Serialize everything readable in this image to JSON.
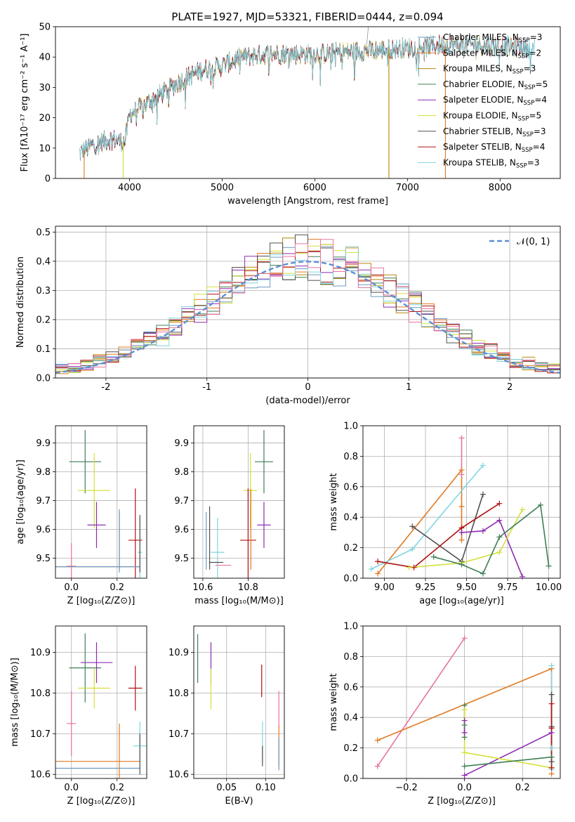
{
  "figure_title": "PLATE=1927, MJD=53321, FIBERID=0444, z=0.094",
  "model_colors": [
    "#6b9ac4",
    "#e07a22",
    "#b8860b",
    "#3f7f56",
    "#8e2bb0",
    "#d4e03a",
    "#505050",
    "#b01010",
    "#7fd6e0",
    "#e8749f"
  ],
  "chart_data": [
    {
      "id": "spectrum",
      "type": "line",
      "title": "PLATE=1927, MJD=53321, FIBERID=0444, z=0.094",
      "xlabel": "wavelength [Angstrom, rest frame]",
      "ylabel": "Flux [fλ10⁻¹⁷ erg cm⁻² s⁻¹ A⁻¹]",
      "xlim": [
        3200,
        8650
      ],
      "ylim": [
        0,
        50
      ],
      "xticks": [
        4000,
        5000,
        6000,
        7000,
        8000
      ],
      "yticks": [
        0,
        10,
        20,
        30,
        40,
        50
      ],
      "grid": false,
      "legend_position": "right",
      "continuum": {
        "x": [
          3450,
          3600,
          3800,
          3950,
          4000,
          4200,
          4400,
          4600,
          4800,
          5000,
          5200,
          5500,
          6000,
          6500,
          7000,
          7400,
          7800,
          8300
        ],
        "y": [
          8,
          11,
          13,
          12,
          21,
          25,
          29,
          33,
          36,
          37,
          40,
          41,
          41,
          42,
          43,
          44,
          44,
          43
        ]
      },
      "legend": [
        {
          "label": "Chabrier MILES, N",
          "sub": "SSP",
          "tail": "=3",
          "color_index": 0
        },
        {
          "label": "Salpeter MILES, N",
          "sub": "SSP",
          "tail": "=2",
          "color_index": 1
        },
        {
          "label": "Kroupa MILES, N",
          "sub": "SSP",
          "tail": "=3",
          "color_index": 2
        },
        {
          "label": "Chabrier ELODIE, N",
          "sub": "SSP",
          "tail": "=5",
          "color_index": 3
        },
        {
          "label": "Salpeter ELODIE, N",
          "sub": "SSP",
          "tail": "=4",
          "color_index": 4
        },
        {
          "label": "Kroupa ELODIE, N",
          "sub": "SSP",
          "tail": "=5",
          "color_index": 5
        },
        {
          "label": "Chabrier STELIB, N",
          "sub": "SSP",
          "tail": "=3",
          "color_index": 6
        },
        {
          "label": "Salpeter STELIB, N",
          "sub": "SSP",
          "tail": "=4",
          "color_index": 7
        },
        {
          "label": "Kroupa STELIB, N",
          "sub": "SSP",
          "tail": "=3",
          "color_index": 8
        }
      ]
    },
    {
      "id": "residuals",
      "type": "step",
      "xlabel": "(data-model)/error",
      "ylabel": "Normed distribution",
      "xlim": [
        -2.5,
        2.5
      ],
      "ylim": [
        0,
        0.52
      ],
      "xticks": [
        -2,
        -1,
        0,
        1,
        2
      ],
      "yticks": [
        0.0,
        0.1,
        0.2,
        0.3,
        0.4,
        0.5
      ],
      "grid": true,
      "legend_position": "top-right",
      "gaussian_label": "𝒩(0, 1)",
      "gaussian_color": "#5b8fd6"
    },
    {
      "id": "age_vs_Z",
      "type": "errorbar",
      "xlabel": "Z [log₁₀(Z/Z⊙)]",
      "ylabel": "age [log₁₀(age/yr)]",
      "xlim": [
        -0.07,
        0.33
      ],
      "ylim": [
        9.43,
        9.96
      ],
      "xticks": [
        0.0,
        0.2
      ],
      "yticks": [
        9.5,
        9.6,
        9.7,
        9.8,
        9.9
      ],
      "grid": true,
      "points": [
        {
          "x": 0.06,
          "xerr": 0.07,
          "y": 9.835,
          "yerr": 0.11,
          "color_index": 3
        },
        {
          "x": 0.1,
          "xerr": 0.07,
          "y": 9.735,
          "yerr": 0.13,
          "color_index": 5
        },
        {
          "x": 0.11,
          "xerr": 0.04,
          "y": 9.615,
          "yerr": 0.08,
          "color_index": 4
        },
        {
          "x": 0.28,
          "xerr": 0.03,
          "y": 9.562,
          "yerr": 0.18,
          "color_index": 7
        },
        {
          "x": 0.3,
          "xerr": 0.01,
          "y": 9.52,
          "yerr": 0.12,
          "color_index": 8
        },
        {
          "x": 0.0,
          "xerr": 0.02,
          "y": 9.472,
          "yerr": 0.08,
          "color_index": 9
        },
        {
          "x": 0.1,
          "xerr": 0.2,
          "y": 9.47,
          "yerr": 0.0,
          "color_index": 1
        },
        {
          "x": 0.1,
          "xerr": 0.2,
          "y": 9.47,
          "yerr": 0.0,
          "color_index": 0
        },
        {
          "x": 0.21,
          "xerr": 0.0,
          "y": 9.56,
          "yerr": 0.1,
          "color_index": 1
        },
        {
          "x": 0.21,
          "xerr": 0.0,
          "y": 9.56,
          "yerr": 0.11,
          "color_index": 0
        },
        {
          "x": 0.3,
          "xerr": 0.0,
          "y": 9.55,
          "yerr": 0.1,
          "color_index": 6
        }
      ]
    },
    {
      "id": "age_vs_mass",
      "type": "errorbar",
      "xlabel": "mass [log₁₀(M/M⊙)]",
      "xlim": [
        10.56,
        10.96
      ],
      "ylim": [
        9.43,
        9.96
      ],
      "xticks": [
        10.6,
        10.8
      ],
      "yticks": [
        9.5,
        9.6,
        9.7,
        9.8,
        9.9
      ],
      "grid": true,
      "points": [
        {
          "x": 10.87,
          "xerr": 0.04,
          "y": 9.835,
          "yerr": 0.11,
          "color_index": 3
        },
        {
          "x": 10.81,
          "xerr": 0.03,
          "y": 9.735,
          "yerr": 0.13,
          "color_index": 5
        },
        {
          "x": 10.87,
          "xerr": 0.03,
          "y": 9.615,
          "yerr": 0.08,
          "color_index": 4
        },
        {
          "x": 10.8,
          "xerr": 0.035,
          "y": 9.562,
          "yerr": 0.18,
          "color_index": 7
        },
        {
          "x": 10.665,
          "xerr": 0.03,
          "y": 9.52,
          "yerr": 0.12,
          "color_index": 8
        },
        {
          "x": 10.69,
          "xerr": 0.035,
          "y": 9.475,
          "yerr": 0.0,
          "color_index": 9
        },
        {
          "x": 10.63,
          "xerr": 0.0,
          "y": 9.57,
          "yerr": 0.11,
          "color_index": 6
        },
        {
          "x": 10.615,
          "xerr": 0.0,
          "y": 9.56,
          "yerr": 0.1,
          "color_index": 0
        },
        {
          "x": 10.66,
          "xerr": 0.03,
          "y": 9.485,
          "yerr": 0.0,
          "color_index": 6
        },
        {
          "x": 10.812,
          "xerr": 0.0,
          "y": 9.6,
          "yerr": 0.14,
          "color_index": 1
        }
      ]
    },
    {
      "id": "massweight_vs_age",
      "type": "line",
      "xlabel": "age [log₁₀(age/yr)]",
      "ylabel": "mass weight",
      "xlim": [
        8.87,
        10.07
      ],
      "ylim": [
        0,
        1.0
      ],
      "xticks": [
        9.0,
        9.25,
        9.5,
        9.75,
        10.0
      ],
      "yticks": [
        0.0,
        0.2,
        0.4,
        0.6,
        0.8,
        1.0
      ],
      "grid": true,
      "series": [
        {
          "color_index": 9,
          "x": [
            9.47,
            9.47
          ],
          "y": [
            0.92,
            0.68
          ]
        },
        {
          "color_index": 1,
          "x": [
            8.96,
            9.47,
            9.47,
            9.47
          ],
          "y": [
            0.03,
            0.71,
            0.47,
            0.25
          ]
        },
        {
          "color_index": 8,
          "x": [
            8.92,
            9.17,
            9.6
          ],
          "y": [
            0.06,
            0.19,
            0.74
          ]
        },
        {
          "color_index": 6,
          "x": [
            9.17,
            9.47,
            9.6
          ],
          "y": [
            0.34,
            0.11,
            0.55
          ]
        },
        {
          "color_index": 7,
          "x": [
            8.96,
            9.18,
            9.47,
            9.7
          ],
          "y": [
            0.11,
            0.07,
            0.33,
            0.49
          ]
        },
        {
          "color_index": 4,
          "x": [
            9.47,
            9.6,
            9.7,
            9.84
          ],
          "y": [
            0.3,
            0.31,
            0.38,
            0.01
          ]
        },
        {
          "color_index": 5,
          "x": [
            9.15,
            9.47,
            9.7,
            9.84
          ],
          "y": [
            0.07,
            0.1,
            0.17,
            0.45
          ]
        },
        {
          "color_index": 3,
          "x": [
            9.3,
            9.47,
            9.6,
            9.7,
            9.95,
            10.0
          ],
          "y": [
            0.14,
            0.09,
            0.03,
            0.27,
            0.48,
            0.08
          ]
        }
      ]
    },
    {
      "id": "mass_vs_Z",
      "type": "errorbar",
      "xlabel": "Z [log₁₀(Z/Z⊙)]",
      "ylabel": "mass [log₁₀(M/M⊙)]",
      "xlim": [
        -0.07,
        0.33
      ],
      "ylim": [
        10.59,
        10.965
      ],
      "xticks": [
        0.0,
        0.2
      ],
      "yticks": [
        10.6,
        10.7,
        10.8,
        10.9
      ],
      "grid": true,
      "points": [
        {
          "x": 0.06,
          "xerr": 0.07,
          "y": 10.862,
          "yerr": 0.085,
          "color_index": 3
        },
        {
          "x": 0.11,
          "xerr": 0.07,
          "y": 10.875,
          "yerr": 0.05,
          "color_index": 4
        },
        {
          "x": 0.1,
          "xerr": 0.07,
          "y": 10.812,
          "yerr": 0.05,
          "color_index": 5
        },
        {
          "x": 0.28,
          "xerr": 0.03,
          "y": 10.812,
          "yerr": 0.055,
          "color_index": 7
        },
        {
          "x": 0.0,
          "xerr": 0.02,
          "y": 10.725,
          "yerr": 0.08,
          "color_index": 9
        },
        {
          "x": 0.3,
          "xerr": 0.03,
          "y": 10.67,
          "yerr": 0.06,
          "color_index": 8
        },
        {
          "x": 0.11,
          "xerr": 0.19,
          "y": 10.632,
          "yerr": 0.0,
          "color_index": 1
        },
        {
          "x": 0.11,
          "xerr": 0.19,
          "y": 10.615,
          "yerr": 0.0,
          "color_index": 0
        },
        {
          "x": 0.21,
          "xerr": 0.0,
          "y": 10.655,
          "yerr": 0.07,
          "color_index": 1
        },
        {
          "x": 0.3,
          "xerr": 0.0,
          "y": 10.65,
          "yerr": 0.05,
          "color_index": 6
        }
      ]
    },
    {
      "id": "mass_vs_ebv",
      "type": "errorbar",
      "xlabel": "E(B-V)",
      "xlim": [
        0.008,
        0.124
      ],
      "ylim": [
        10.59,
        10.965
      ],
      "xticks": [
        0.05,
        0.1
      ],
      "yticks": [
        10.6,
        10.7,
        10.8,
        10.9
      ],
      "grid": true,
      "points": [
        {
          "x": 0.013,
          "xerr": 0.0,
          "y": 10.885,
          "yerr": 0.06,
          "color_index": 3
        },
        {
          "x": 0.03,
          "xerr": 0.0,
          "y": 10.875,
          "yerr": 0.05,
          "color_index": 4
        },
        {
          "x": 0.03,
          "xerr": 0.0,
          "y": 10.81,
          "yerr": 0.05,
          "color_index": 5
        },
        {
          "x": 0.095,
          "xerr": 0.0,
          "y": 10.83,
          "yerr": 0.04,
          "color_index": 7
        },
        {
          "x": 0.096,
          "xerr": 0.0,
          "y": 10.68,
          "yerr": 0.05,
          "color_index": 8
        },
        {
          "x": 0.096,
          "xerr": 0.0,
          "y": 10.645,
          "yerr": 0.025,
          "color_index": 6
        },
        {
          "x": 0.117,
          "xerr": 0.0,
          "y": 10.76,
          "yerr": 0.045,
          "color_index": 9
        },
        {
          "x": 0.117,
          "xerr": 0.0,
          "y": 10.67,
          "yerr": 0.05,
          "color_index": 1
        },
        {
          "x": 0.117,
          "xerr": 0.0,
          "y": 10.65,
          "yerr": 0.04,
          "color_index": 0
        }
      ]
    },
    {
      "id": "massweight_vs_Z",
      "type": "line",
      "xlabel": "Z [log₁₀(Z/Z⊙)]",
      "ylabel": "mass weight",
      "xlim": [
        -0.35,
        0.33
      ],
      "ylim": [
        0,
        1.0
      ],
      "xticks": [
        -0.2,
        0.0,
        0.2
      ],
      "yticks": [
        0.0,
        0.2,
        0.4,
        0.6,
        0.8,
        1.0
      ],
      "grid": true,
      "series": [
        {
          "color_index": 9,
          "x": [
            -0.3,
            0.0
          ],
          "y": [
            0.08,
            0.92
          ]
        },
        {
          "color_index": 1,
          "x": [
            -0.3,
            0.3,
            0.3
          ],
          "y": [
            0.25,
            0.72,
            0.03
          ]
        },
        {
          "color_index": 4,
          "x": [
            0.0,
            0.3
          ],
          "y": [
            0.02,
            0.3
          ]
        },
        {
          "color_index": 5,
          "x": [
            0.0,
            0.3
          ],
          "y": [
            0.17,
            0.07
          ]
        },
        {
          "color_index": 3,
          "x": [
            0.0,
            0.3
          ],
          "y": [
            0.08,
            0.14
          ]
        },
        {
          "color_index": 3,
          "x": [
            0.0,
            0.0,
            0.0
          ],
          "y": [
            0.48,
            0.35,
            0.27
          ]
        },
        {
          "color_index": 5,
          "x": [
            0.0,
            0.0
          ],
          "y": [
            0.45,
            0.17
          ]
        },
        {
          "color_index": 4,
          "x": [
            0.0,
            0.0
          ],
          "y": [
            0.38,
            0.3
          ]
        },
        {
          "color_index": 8,
          "x": [
            0.3,
            0.3,
            0.3
          ],
          "y": [
            0.74,
            0.2,
            0.06
          ]
        },
        {
          "color_index": 6,
          "x": [
            0.3,
            0.3,
            0.3
          ],
          "y": [
            0.55,
            0.34,
            0.11
          ]
        },
        {
          "color_index": 7,
          "x": [
            0.3,
            0.3,
            0.3
          ],
          "y": [
            0.49,
            0.33,
            0.07
          ]
        }
      ]
    }
  ]
}
